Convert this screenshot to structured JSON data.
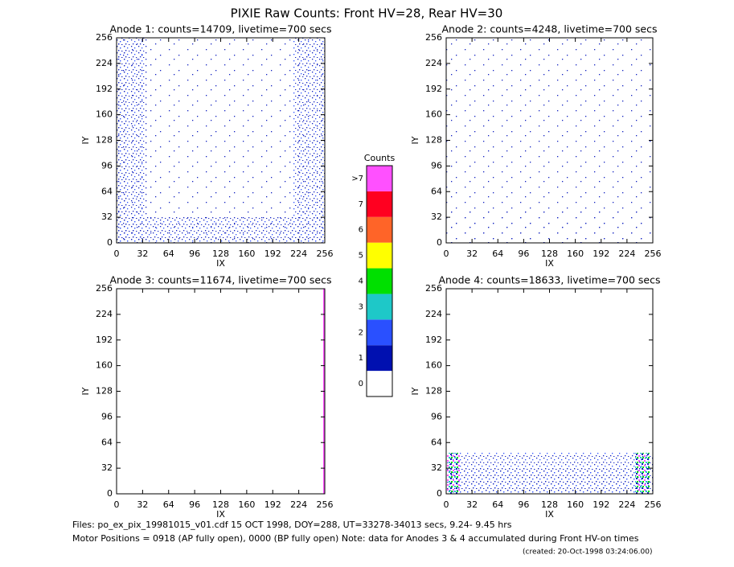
{
  "title": "PIXIE Raw Counts:  Front HV=28, Rear HV=30",
  "chart_data": [
    {
      "type": "heatmap",
      "title": "Anode 1: counts=14709, livetime=700 secs",
      "xlabel": "IX",
      "ylabel": "IY",
      "xlim": [
        0,
        256
      ],
      "ylim": [
        0,
        256
      ],
      "xticks": [
        0,
        32,
        64,
        96,
        128,
        160,
        192,
        224,
        256
      ],
      "yticks": [
        0,
        32,
        64,
        96,
        128,
        160,
        192,
        224,
        256
      ]
    },
    {
      "type": "heatmap",
      "title": "Anode 2: counts=4248, livetime=700 secs",
      "xlabel": "IX",
      "ylabel": "IY",
      "xlim": [
        0,
        256
      ],
      "ylim": [
        0,
        256
      ],
      "xticks": [
        0,
        32,
        64,
        96,
        128,
        160,
        192,
        224,
        256
      ],
      "yticks": [
        0,
        32,
        64,
        96,
        128,
        160,
        192,
        224,
        256
      ]
    },
    {
      "type": "heatmap",
      "title": "Anode 3: counts=11674, livetime=700 secs",
      "xlabel": "IX",
      "ylabel": "IY",
      "xlim": [
        0,
        256
      ],
      "ylim": [
        0,
        256
      ],
      "xticks": [
        0,
        32,
        64,
        96,
        128,
        160,
        192,
        224,
        256
      ],
      "yticks": [
        0,
        32,
        64,
        96,
        128,
        160,
        192,
        224,
        256
      ]
    },
    {
      "type": "heatmap",
      "title": "Anode 4: counts=18633, livetime=700 secs",
      "xlabel": "IX",
      "ylabel": "IY",
      "xlim": [
        0,
        256
      ],
      "ylim": [
        0,
        256
      ],
      "xticks": [
        0,
        32,
        64,
        96,
        128,
        160,
        192,
        224,
        256
      ],
      "yticks": [
        0,
        32,
        64,
        96,
        128,
        160,
        192,
        224,
        256
      ]
    },
    {
      "type": "colorbar",
      "title": "Counts",
      "categories": [
        "0",
        "1",
        "2",
        "3",
        "4",
        "5",
        "6",
        "7",
        ">7"
      ],
      "colors": [
        "#ffffff",
        "#0010b0",
        "#2a50ff",
        "#1ec8c8",
        "#00e000",
        "#ffff00",
        "#ff6428",
        "#ff0020",
        "#ff50ff"
      ]
    }
  ],
  "footer": {
    "line1": "Files: po_ex_pix_19981015_v01.cdf    15 OCT 1998, DOY=288, UT=33278-34013 secs,  9.24- 9.45 hrs",
    "line2": "Motor Positions = 0918 (AP fully open), 0000 (BP fully open)    Note: data for Anodes 3 & 4 accumulated during Front HV-on times",
    "line3": "(created: 20-Oct-1998 03:24:06.00)"
  }
}
